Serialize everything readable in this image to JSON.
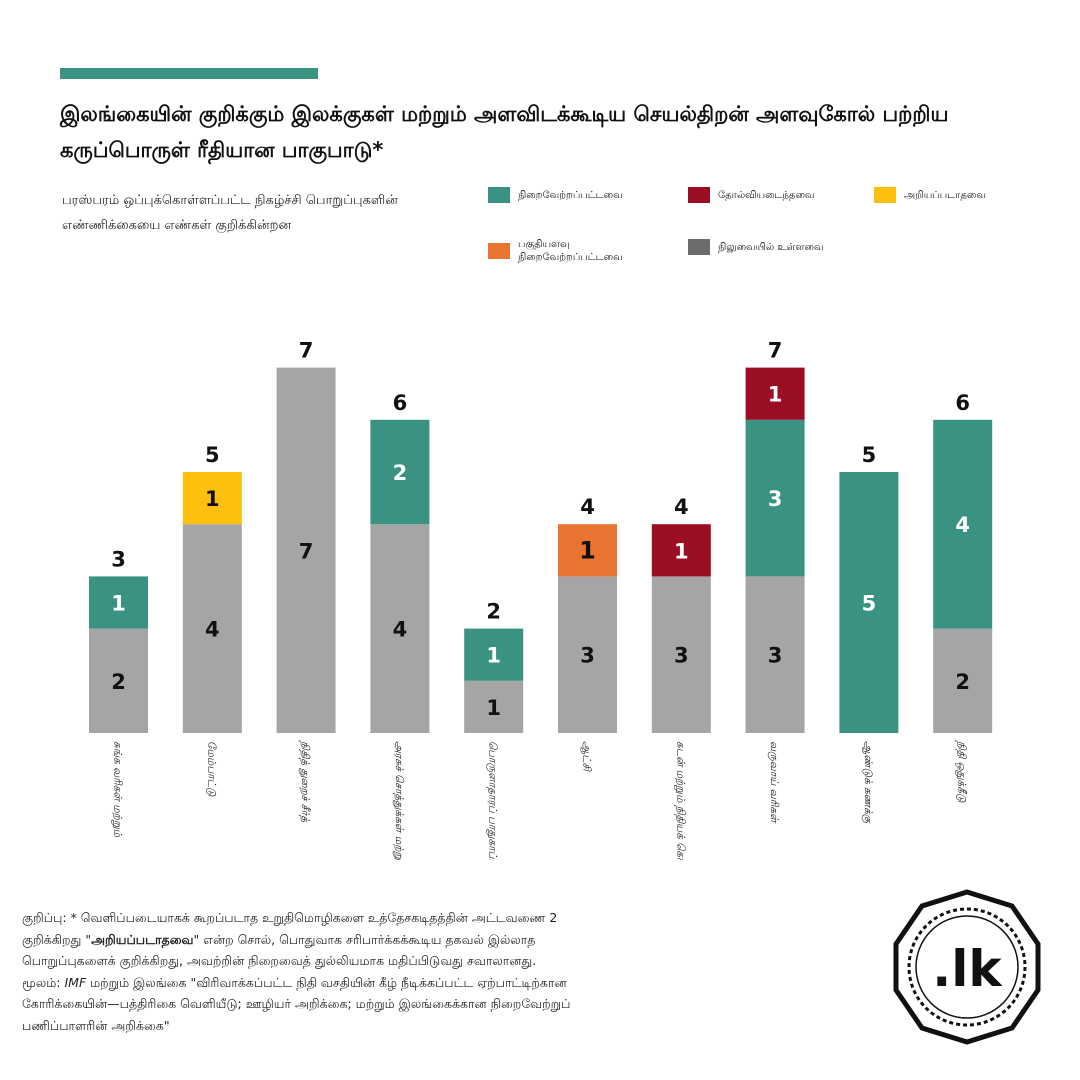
{
  "header": {
    "title": "இலங்கையின் குறிக்கும் இலக்குகள் மற்றும் அளவிடக்கூடிய செயல்திறன் அளவுகோல் பற்றிய கருப்பொருள் ரீதியான பாகுபாடு*",
    "subtitle": "பரஸ்பரம் ஒப்புக்கொள்ளப்பட்ட நிகழ்ச்சி பொறுப்புகளின் எண்ணிக்கையை எண்கள் குறிக்கின்றன",
    "accent_color": "#3a9282"
  },
  "legend": [
    {
      "label": "நிறைவேற்றப்பட்டவை",
      "color": "#3a9282"
    },
    {
      "label": "தோல்வியடைந்தவை",
      "color": "#9b0d22"
    },
    {
      "label": "அறியப்படாதவை",
      "color": "#fdc00e"
    },
    {
      "label": "பகுதியளவு நிறைவேற்றப்பட்டவை",
      "color": "#e8742f"
    },
    {
      "label": "நிலுவையில் உள்ளவை",
      "color": "#6b6d6a"
    }
  ],
  "chart_data": {
    "type": "bar",
    "stacked": true,
    "categories": [
      "சுங்க வரிகள் மற்றும்",
      "மேம்பாட்டு",
      "நிதித் துறைச் சீர்த்",
      "அரசுச் சொத்துக்கள் மற்றும் நிர்வாகச் சீர்த்",
      "பொருளாதாரப் பாதுகாப்புச் சீர்திருத்தங்கள்",
      "ஆட்சி",
      "கடன் மற்றும் நிதியக் கொள்கை",
      "வருவாய் வரிகள்",
      "ஆண்டுக் கணக்கு",
      "நிதி ஒதுக்கீடு"
    ],
    "series": [
      {
        "key": "pending",
        "values": [
          2,
          4,
          7,
          4,
          1,
          3,
          3,
          3,
          0,
          2
        ],
        "color": "#a5a5a5"
      },
      {
        "key": "fulfilled",
        "values": [
          1,
          0,
          0,
          2,
          1,
          0,
          0,
          3,
          5,
          4
        ],
        "color": "#3a9282"
      },
      {
        "key": "unknown",
        "values": [
          0,
          1,
          0,
          0,
          0,
          0,
          0,
          0,
          0,
          0
        ],
        "color": "#fdc00e"
      },
      {
        "key": "partial",
        "values": [
          0,
          0,
          0,
          0,
          0,
          1,
          0,
          0,
          0,
          0
        ],
        "color": "#e8742f"
      },
      {
        "key": "failed",
        "values": [
          0,
          0,
          0,
          0,
          0,
          0,
          1,
          1,
          0,
          0
        ],
        "color": "#9b0d22"
      }
    ],
    "totals": [
      3,
      5,
      7,
      6,
      2,
      4,
      4,
      7,
      5,
      6
    ],
    "ylim": [
      0,
      7
    ],
    "grid": false
  },
  "footnote": {
    "line1_prefix": "குறிப்பு: ",
    "line1_rest": "* வெளிப்படையாகக் கூறப்படாத உறுதிமொழிகளை உத்தேசகடிதத்தின் அட்டவணை 2",
    "line2_prefix": "குறிக்கிறது \"",
    "line2_bold": "அறியப்படாதவை",
    "line2_rest": "\" என்ற சொல், பொதுவாக சரிபார்க்கக்கூடிய தகவல் இல்லாத",
    "line3": "பொறுப்புகளைக் குறிக்கிறது, அவற்றின் நிறைவைத் துல்லியமாக மதிப்பிடுவது சவாலானது.",
    "source_prefix": "மூலம்: ",
    "source_ital": "IMF",
    "source_rest": " மற்றும் இலங்கை \"விரிவாக்கப்பட்ட நிதி வசதியின் கீழ் நீடிக்கப்பட்ட ஏற்பாட்டிற்கான",
    "line5": "கோரிக்கையின்—பத்திரிகை வெளியீடு; ஊழியர் அறிக்கை; மற்றும் இலங்கைக்கான நிறைவேற்றுப்",
    "line6": "பணிப்பாளரின் அறிக்கை\""
  },
  "logo": {
    "text": ".lk"
  }
}
